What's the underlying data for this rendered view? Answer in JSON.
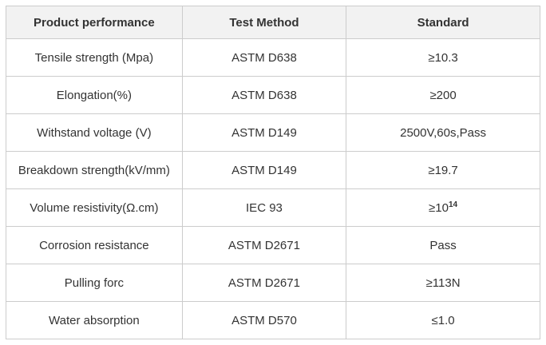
{
  "colors": {
    "header_background": "#f2f2f2",
    "border": "#cccccc",
    "text": "#333333",
    "page_background": "#ffffff"
  },
  "table": {
    "headers": {
      "performance": "Product performance",
      "method": "Test Method",
      "standard": "Standard"
    },
    "rows": [
      {
        "performance": "Tensile strength (Mpa)",
        "method": "ASTM D638",
        "standard": "≥10.3"
      },
      {
        "performance": "Elongation(%)",
        "method": "ASTM D638",
        "standard": "≥200"
      },
      {
        "performance": "Withstand voltage (V)",
        "method": "ASTM D149",
        "standard": "2500V,60s,Pass"
      },
      {
        "performance": "Breakdown strength(kV/mm)",
        "method": "ASTM D149",
        "standard": "≥19.7"
      },
      {
        "performance": "Volume resistivity(Ω.cm)",
        "method": "IEC 93",
        "standard": "≥10",
        "standard_sup": "14"
      },
      {
        "performance": "Corrosion resistance",
        "method": "ASTM D2671",
        "standard": "Pass"
      },
      {
        "performance": "Pulling forc",
        "method": "ASTM D2671",
        "standard": "≥113N"
      },
      {
        "performance": "Water absorption",
        "method": "ASTM D570",
        "standard": "≤1.0"
      }
    ]
  }
}
